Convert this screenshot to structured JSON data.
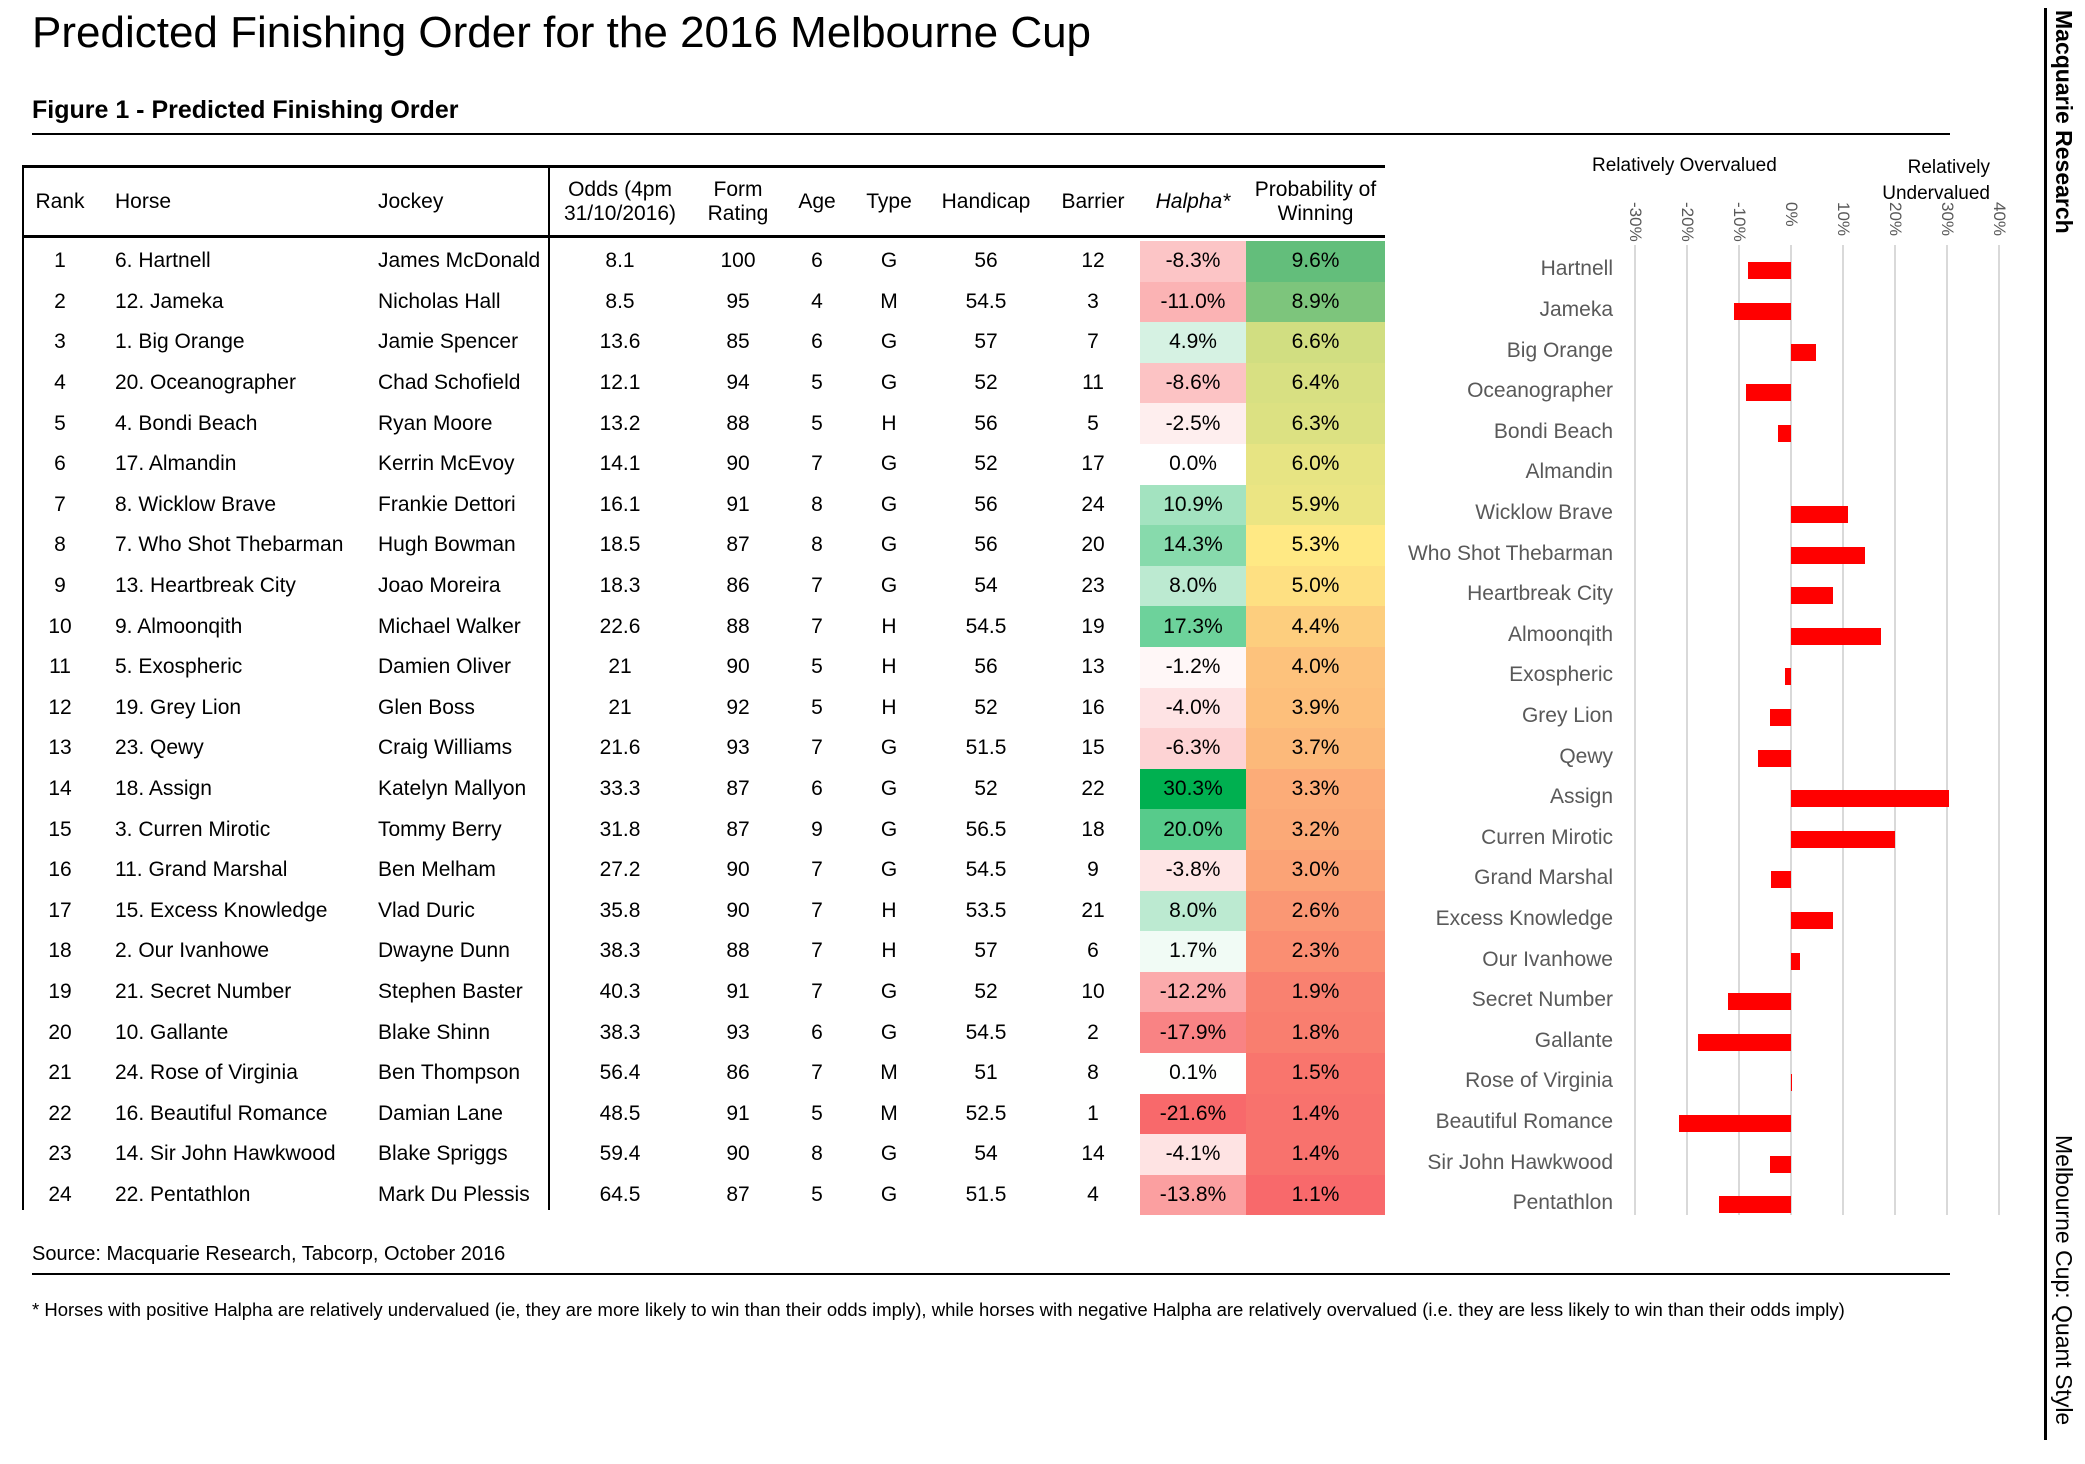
{
  "title": "Predicted Finishing Order for the 2016 Melbourne Cup",
  "subtitle": "Figure 1 - Predicted Finishing Order",
  "brand": "Macquarie Research",
  "series_name": "Melbourne Cup: Quant Style",
  "source": "Source: Macquarie Research, Tabcorp, October 2016",
  "footnote": "* Horses with positive Halpha are relatively undervalued (ie, they are more likely to win than their odds imply), while horses with negative Halpha are relatively overvalued (i.e. they are less likely to win than their odds imply)",
  "table": {
    "headers": [
      "Rank",
      "Horse",
      "Jockey",
      "Odds (4pm 31/10/2016)",
      "Form Rating",
      "Age",
      "Type",
      "Handicap",
      "Barrier",
      "Halpha*",
      "Probability of Winning"
    ],
    "rows": [
      [
        "1",
        "6. Hartnell",
        "James McDonald",
        "8.1",
        "100",
        "6",
        "G",
        "56",
        "12",
        "-8.3%",
        "9.6%"
      ],
      [
        "2",
        "12. Jameka",
        "Nicholas Hall",
        "8.5",
        "95",
        "4",
        "M",
        "54.5",
        "3",
        "-11.0%",
        "8.9%"
      ],
      [
        "3",
        "1. Big Orange",
        "Jamie Spencer",
        "13.6",
        "85",
        "6",
        "G",
        "57",
        "7",
        "4.9%",
        "6.6%"
      ],
      [
        "4",
        "20. Oceanographer",
        "Chad Schofield",
        "12.1",
        "94",
        "5",
        "G",
        "52",
        "11",
        "-8.6%",
        "6.4%"
      ],
      [
        "5",
        "4. Bondi Beach",
        "Ryan Moore",
        "13.2",
        "88",
        "5",
        "H",
        "56",
        "5",
        "-2.5%",
        "6.3%"
      ],
      [
        "6",
        "17. Almandin",
        "Kerrin McEvoy",
        "14.1",
        "90",
        "7",
        "G",
        "52",
        "17",
        "0.0%",
        "6.0%"
      ],
      [
        "7",
        "8. Wicklow Brave",
        "Frankie Dettori",
        "16.1",
        "91",
        "8",
        "G",
        "56",
        "24",
        "10.9%",
        "5.9%"
      ],
      [
        "8",
        "7. Who Shot Thebarman",
        "Hugh Bowman",
        "18.5",
        "87",
        "8",
        "G",
        "56",
        "20",
        "14.3%",
        "5.3%"
      ],
      [
        "9",
        "13. Heartbreak City",
        "Joao Moreira",
        "18.3",
        "86",
        "7",
        "G",
        "54",
        "23",
        "8.0%",
        "5.0%"
      ],
      [
        "10",
        "9. Almoonqith",
        "Michael Walker",
        "22.6",
        "88",
        "7",
        "H",
        "54.5",
        "19",
        "17.3%",
        "4.4%"
      ],
      [
        "11",
        "5. Exospheric",
        "Damien Oliver",
        "21",
        "90",
        "5",
        "H",
        "56",
        "13",
        "-1.2%",
        "4.0%"
      ],
      [
        "12",
        "19. Grey Lion",
        "Glen Boss",
        "21",
        "92",
        "5",
        "H",
        "52",
        "16",
        "-4.0%",
        "3.9%"
      ],
      [
        "13",
        "23. Qewy",
        "Craig Williams",
        "21.6",
        "93",
        "7",
        "G",
        "51.5",
        "15",
        "-6.3%",
        "3.7%"
      ],
      [
        "14",
        "18. Assign",
        "Katelyn Mallyon",
        "33.3",
        "87",
        "6",
        "G",
        "52",
        "22",
        "30.3%",
        "3.3%"
      ],
      [
        "15",
        "3. Curren Mirotic",
        "Tommy Berry",
        "31.8",
        "87",
        "9",
        "G",
        "56.5",
        "18",
        "20.0%",
        "3.2%"
      ],
      [
        "16",
        "11. Grand Marshal",
        "Ben Melham",
        "27.2",
        "90",
        "7",
        "G",
        "54.5",
        "9",
        "-3.8%",
        "3.0%"
      ],
      [
        "17",
        "15. Excess Knowledge",
        "Vlad Duric",
        "35.8",
        "90",
        "7",
        "H",
        "53.5",
        "21",
        "8.0%",
        "2.6%"
      ],
      [
        "18",
        "2. Our Ivanhowe",
        "Dwayne Dunn",
        "38.3",
        "88",
        "7",
        "H",
        "57",
        "6",
        "1.7%",
        "2.3%"
      ],
      [
        "19",
        "21. Secret Number",
        "Stephen Baster",
        "40.3",
        "91",
        "7",
        "G",
        "52",
        "10",
        "-12.2%",
        "1.9%"
      ],
      [
        "20",
        "10. Gallante",
        "Blake Shinn",
        "38.3",
        "93",
        "6",
        "G",
        "54.5",
        "2",
        "-17.9%",
        "1.8%"
      ],
      [
        "21",
        "24. Rose of Virginia",
        "Ben Thompson",
        "56.4",
        "86",
        "7",
        "M",
        "51",
        "8",
        "0.1%",
        "1.5%"
      ],
      [
        "22",
        "16. Beautiful Romance",
        "Damian Lane",
        "48.5",
        "91",
        "5",
        "M",
        "52.5",
        "1",
        "-21.6%",
        "1.4%"
      ],
      [
        "23",
        "14. Sir John Hawkwood",
        "Blake Spriggs",
        "59.4",
        "90",
        "8",
        "G",
        "54",
        "14",
        "-4.1%",
        "1.4%"
      ],
      [
        "24",
        "22. Pentathlon",
        "Mark Du Plessis",
        "64.5",
        "87",
        "5",
        "G",
        "51.5",
        "4",
        "-13.8%",
        "1.1%"
      ]
    ]
  },
  "colors": {
    "bar": "#ff0000",
    "red": "#f8696b",
    "green": "#00b050",
    "yellow": "#ffeb84",
    "probgreen": "#63be7b"
  },
  "chart_data": {
    "type": "bar",
    "orientation": "horizontal",
    "label_left": "Relatively Overvalued",
    "label_right": "Relatively Undervalued",
    "categories": [
      "Hartnell",
      "Jameka",
      "Big Orange",
      "Oceanographer",
      "Bondi Beach",
      "Almandin",
      "Wicklow Brave",
      "Who Shot Thebarman",
      "Heartbreak City",
      "Almoonqith",
      "Exospheric",
      "Grey Lion",
      "Qewy",
      "Assign",
      "Curren Mirotic",
      "Grand Marshal",
      "Excess Knowledge",
      "Our Ivanhowe",
      "Secret Number",
      "Gallante",
      "Rose of Virginia",
      "Beautiful Romance",
      "Sir John Hawkwood",
      "Pentathlon"
    ],
    "values": [
      -8.3,
      -11.0,
      4.9,
      -8.6,
      -2.5,
      0.0,
      10.9,
      14.3,
      8.0,
      17.3,
      -1.2,
      -4.0,
      -6.3,
      30.3,
      20.0,
      -3.8,
      8.0,
      1.7,
      -12.2,
      -17.9,
      0.1,
      -21.6,
      -4.1,
      -13.8
    ],
    "ticks": [
      "-30%",
      "-20%",
      "-10%",
      "0%",
      "10%",
      "20%",
      "30%",
      "40%"
    ],
    "xlim": [
      -30,
      40
    ],
    "grid": true
  }
}
